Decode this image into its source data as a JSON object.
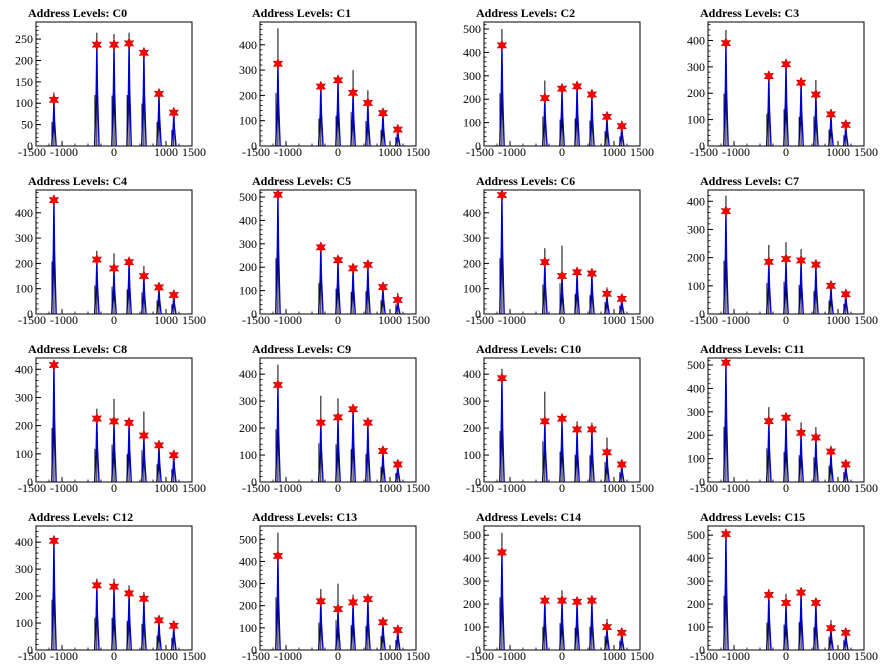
{
  "colors": {
    "histogram": "#0000cc",
    "marker": "#ff0000",
    "frame": "#000000"
  },
  "chart_data": [
    {
      "type": "bar",
      "title": "Address Levels: C0",
      "xlim": [
        -1500,
        1500
      ],
      "ylim": [
        0,
        290
      ],
      "xticks": [
        -1500,
        -1000,
        0,
        1000,
        1500
      ],
      "xtick_labels": [
        "-1500",
        "-1000",
        "0",
        "1000",
        "1500"
      ],
      "yticks": [
        0,
        50,
        100,
        150,
        200,
        250
      ],
      "peaks": [
        {
          "x": -1155,
          "y": 125,
          "marker": 108
        },
        {
          "x": -330,
          "y": 265,
          "marker": 237
        },
        {
          "x": 0,
          "y": 262,
          "marker": 237
        },
        {
          "x": 290,
          "y": 265,
          "marker": 240
        },
        {
          "x": 575,
          "y": 220,
          "marker": 218
        },
        {
          "x": 865,
          "y": 125,
          "marker": 122
        },
        {
          "x": 1150,
          "y": 83,
          "marker": 78
        }
      ]
    },
    {
      "type": "bar",
      "title": "Address Levels: C1",
      "xlim": [
        -1500,
        1500
      ],
      "ylim": [
        0,
        490
      ],
      "xticks": [
        -1500,
        -1000,
        0,
        1000,
        1500
      ],
      "xtick_labels": [
        "-1500",
        "-1000",
        "0",
        "1000",
        "1500"
      ],
      "yticks": [
        0,
        100,
        200,
        300,
        400
      ],
      "peaks": [
        {
          "x": -1155,
          "y": 465,
          "marker": 325
        },
        {
          "x": -330,
          "y": 240,
          "marker": 235
        },
        {
          "x": 0,
          "y": 265,
          "marker": 260
        },
        {
          "x": 290,
          "y": 300,
          "marker": 210
        },
        {
          "x": 575,
          "y": 220,
          "marker": 170
        },
        {
          "x": 865,
          "y": 140,
          "marker": 130
        },
        {
          "x": 1150,
          "y": 80,
          "marker": 65
        }
      ]
    },
    {
      "type": "bar",
      "title": "Address Levels: C2",
      "xlim": [
        -1500,
        1500
      ],
      "ylim": [
        0,
        530
      ],
      "xticks": [
        -1500,
        -1000,
        0,
        1000,
        1500
      ],
      "xtick_labels": [
        "-1500",
        "-1000",
        "0",
        "1000",
        "1500"
      ],
      "yticks": [
        0,
        100,
        200,
        300,
        400,
        500
      ],
      "peaks": [
        {
          "x": -1155,
          "y": 500,
          "marker": 430
        },
        {
          "x": -330,
          "y": 280,
          "marker": 205
        },
        {
          "x": 0,
          "y": 250,
          "marker": 245
        },
        {
          "x": 290,
          "y": 260,
          "marker": 255
        },
        {
          "x": 575,
          "y": 240,
          "marker": 220
        },
        {
          "x": 865,
          "y": 140,
          "marker": 125
        },
        {
          "x": 1150,
          "y": 90,
          "marker": 85
        }
      ]
    },
    {
      "type": "bar",
      "title": "Address Levels: C3",
      "xlim": [
        -1500,
        1500
      ],
      "ylim": [
        0,
        470
      ],
      "xticks": [
        -1500,
        -1000,
        0,
        1000,
        1500
      ],
      "xtick_labels": [
        "-1500",
        "-1000",
        "0",
        "1000",
        "1500"
      ],
      "yticks": [
        0,
        100,
        200,
        300,
        400
      ],
      "peaks": [
        {
          "x": -1155,
          "y": 440,
          "marker": 390
        },
        {
          "x": -330,
          "y": 270,
          "marker": 265
        },
        {
          "x": 0,
          "y": 310,
          "marker": 310
        },
        {
          "x": 290,
          "y": 245,
          "marker": 240
        },
        {
          "x": 575,
          "y": 250,
          "marker": 195
        },
        {
          "x": 865,
          "y": 140,
          "marker": 120
        },
        {
          "x": 1150,
          "y": 90,
          "marker": 80
        }
      ]
    },
    {
      "type": "bar",
      "title": "Address Levels: C4",
      "xlim": [
        -1500,
        1500
      ],
      "ylim": [
        0,
        490
      ],
      "xticks": [
        -1500,
        -1000,
        0,
        1000,
        1500
      ],
      "xtick_labels": [
        "-1500",
        "-1000",
        "0",
        "1000",
        "1500"
      ],
      "yticks": [
        0,
        100,
        200,
        300,
        400
      ],
      "peaks": [
        {
          "x": -1155,
          "y": 460,
          "marker": 450
        },
        {
          "x": -330,
          "y": 250,
          "marker": 215
        },
        {
          "x": 0,
          "y": 240,
          "marker": 180
        },
        {
          "x": 290,
          "y": 215,
          "marker": 205
        },
        {
          "x": 575,
          "y": 190,
          "marker": 150
        },
        {
          "x": 865,
          "y": 120,
          "marker": 105
        },
        {
          "x": 1150,
          "y": 85,
          "marker": 75
        }
      ]
    },
    {
      "type": "bar",
      "title": "Address Levels: C5",
      "xlim": [
        -1500,
        1500
      ],
      "ylim": [
        0,
        530
      ],
      "xticks": [
        -1500,
        -1000,
        0,
        1000,
        1500
      ],
      "xtick_labels": [
        "-1500",
        "-1000",
        "0",
        "1000",
        "1500"
      ],
      "yticks": [
        0,
        100,
        200,
        300,
        400,
        500
      ],
      "peaks": [
        {
          "x": -1155,
          "y": 530,
          "marker": 510
        },
        {
          "x": -330,
          "y": 295,
          "marker": 285
        },
        {
          "x": 0,
          "y": 240,
          "marker": 230
        },
        {
          "x": 290,
          "y": 210,
          "marker": 195
        },
        {
          "x": 575,
          "y": 215,
          "marker": 210
        },
        {
          "x": 865,
          "y": 130,
          "marker": 115
        },
        {
          "x": 1150,
          "y": 90,
          "marker": 60
        }
      ]
    },
    {
      "type": "bar",
      "title": "Address Levels: C6",
      "xlim": [
        -1500,
        1500
      ],
      "ylim": [
        0,
        490
      ],
      "xticks": [
        -1500,
        -1000,
        0,
        1000,
        1500
      ],
      "xtick_labels": [
        "-1500",
        "-1000",
        "0",
        "1000",
        "1500"
      ],
      "yticks": [
        0,
        100,
        200,
        300,
        400
      ],
      "peaks": [
        {
          "x": -1155,
          "y": 490,
          "marker": 470
        },
        {
          "x": -330,
          "y": 260,
          "marker": 205
        },
        {
          "x": 0,
          "y": 270,
          "marker": 150
        },
        {
          "x": 290,
          "y": 175,
          "marker": 165
        },
        {
          "x": 575,
          "y": 165,
          "marker": 160
        },
        {
          "x": 865,
          "y": 105,
          "marker": 80
        },
        {
          "x": 1150,
          "y": 75,
          "marker": 60
        }
      ]
    },
    {
      "type": "bar",
      "title": "Address Levels: C7",
      "xlim": [
        -1500,
        1500
      ],
      "ylim": [
        0,
        440
      ],
      "xticks": [
        -1500,
        -1000,
        0,
        1000,
        1500
      ],
      "xtick_labels": [
        "-1500",
        "-1000",
        "0",
        "1000",
        "1500"
      ],
      "yticks": [
        0,
        100,
        200,
        300,
        400
      ],
      "peaks": [
        {
          "x": -1155,
          "y": 420,
          "marker": 365
        },
        {
          "x": -330,
          "y": 245,
          "marker": 185
        },
        {
          "x": 0,
          "y": 255,
          "marker": 195
        },
        {
          "x": 290,
          "y": 230,
          "marker": 190
        },
        {
          "x": 575,
          "y": 180,
          "marker": 175
        },
        {
          "x": 865,
          "y": 105,
          "marker": 100
        },
        {
          "x": 1150,
          "y": 80,
          "marker": 70
        }
      ]
    },
    {
      "type": "bar",
      "title": "Address Levels: C8",
      "xlim": [
        -1500,
        1500
      ],
      "ylim": [
        0,
        440
      ],
      "xticks": [
        -1500,
        -1000,
        0,
        1000,
        1500
      ],
      "xtick_labels": [
        "-1500",
        "-1000",
        "0",
        "1000",
        "1500"
      ],
      "yticks": [
        0,
        100,
        200,
        300,
        400
      ],
      "peaks": [
        {
          "x": -1155,
          "y": 425,
          "marker": 415
        },
        {
          "x": -330,
          "y": 260,
          "marker": 225
        },
        {
          "x": 0,
          "y": 295,
          "marker": 215
        },
        {
          "x": 290,
          "y": 220,
          "marker": 210
        },
        {
          "x": 575,
          "y": 250,
          "marker": 165
        },
        {
          "x": 865,
          "y": 140,
          "marker": 130
        },
        {
          "x": 1150,
          "y": 100,
          "marker": 95
        }
      ]
    },
    {
      "type": "bar",
      "title": "Address Levels: C9",
      "xlim": [
        -1500,
        1500
      ],
      "ylim": [
        0,
        460
      ],
      "xticks": [
        -1500,
        -1000,
        0,
        1000,
        1500
      ],
      "xtick_labels": [
        "-1500",
        "-1000",
        "0",
        "1000",
        "1500"
      ],
      "yticks": [
        0,
        100,
        200,
        300,
        400
      ],
      "peaks": [
        {
          "x": -1155,
          "y": 435,
          "marker": 360
        },
        {
          "x": -330,
          "y": 320,
          "marker": 220
        },
        {
          "x": 0,
          "y": 310,
          "marker": 240
        },
        {
          "x": 290,
          "y": 270,
          "marker": 270
        },
        {
          "x": 575,
          "y": 230,
          "marker": 220
        },
        {
          "x": 865,
          "y": 125,
          "marker": 115
        },
        {
          "x": 1150,
          "y": 75,
          "marker": 65
        }
      ]
    },
    {
      "type": "bar",
      "title": "Address Levels: C10",
      "xlim": [
        -1500,
        1500
      ],
      "ylim": [
        0,
        460
      ],
      "xticks": [
        -1500,
        -1000,
        0,
        1000,
        1500
      ],
      "xtick_labels": [
        "-1500",
        "-1000",
        "0",
        "1000",
        "1500"
      ],
      "yticks": [
        0,
        100,
        200,
        300,
        400
      ],
      "peaks": [
        {
          "x": -1155,
          "y": 420,
          "marker": 385
        },
        {
          "x": -330,
          "y": 335,
          "marker": 225
        },
        {
          "x": 0,
          "y": 250,
          "marker": 235
        },
        {
          "x": 290,
          "y": 225,
          "marker": 195
        },
        {
          "x": 575,
          "y": 220,
          "marker": 195
        },
        {
          "x": 865,
          "y": 165,
          "marker": 110
        },
        {
          "x": 1150,
          "y": 80,
          "marker": 65
        }
      ]
    },
    {
      "type": "bar",
      "title": "Address Levels: C11",
      "xlim": [
        -1500,
        1500
      ],
      "ylim": [
        0,
        530
      ],
      "xticks": [
        -1500,
        -1000,
        0,
        1000,
        1500
      ],
      "xtick_labels": [
        "-1500",
        "-1000",
        "0",
        "1000",
        "1500"
      ],
      "yticks": [
        0,
        100,
        200,
        300,
        400,
        500
      ],
      "peaks": [
        {
          "x": -1155,
          "y": 525,
          "marker": 510
        },
        {
          "x": -330,
          "y": 320,
          "marker": 260
        },
        {
          "x": 0,
          "y": 285,
          "marker": 275
        },
        {
          "x": 290,
          "y": 255,
          "marker": 210
        },
        {
          "x": 575,
          "y": 235,
          "marker": 190
        },
        {
          "x": 865,
          "y": 155,
          "marker": 130
        },
        {
          "x": 1150,
          "y": 95,
          "marker": 75
        }
      ]
    },
    {
      "type": "bar",
      "title": "Address Levels: C12",
      "xlim": [
        -1500,
        1500
      ],
      "ylim": [
        0,
        460
      ],
      "xticks": [
        -1500,
        -1000,
        0,
        1000,
        1500
      ],
      "xtick_labels": [
        "-1500",
        "-1000",
        "0",
        "1000",
        "1500"
      ],
      "yticks": [
        0,
        100,
        200,
        300,
        400
      ],
      "peaks": [
        {
          "x": -1155,
          "y": 415,
          "marker": 405
        },
        {
          "x": -330,
          "y": 265,
          "marker": 240
        },
        {
          "x": 0,
          "y": 265,
          "marker": 235
        },
        {
          "x": 290,
          "y": 240,
          "marker": 210
        },
        {
          "x": 575,
          "y": 215,
          "marker": 190
        },
        {
          "x": 865,
          "y": 120,
          "marker": 110
        },
        {
          "x": 1150,
          "y": 100,
          "marker": 90
        }
      ]
    },
    {
      "type": "bar",
      "title": "Address Levels: C13",
      "xlim": [
        -1500,
        1500
      ],
      "ylim": [
        0,
        560
      ],
      "xticks": [
        -1500,
        -1000,
        0,
        1000,
        1500
      ],
      "xtick_labels": [
        "-1500",
        "-1000",
        "0",
        "1000",
        "1500"
      ],
      "yticks": [
        0,
        100,
        200,
        300,
        400,
        500
      ],
      "peaks": [
        {
          "x": -1155,
          "y": 530,
          "marker": 425
        },
        {
          "x": -330,
          "y": 275,
          "marker": 220
        },
        {
          "x": 0,
          "y": 300,
          "marker": 185
        },
        {
          "x": 290,
          "y": 250,
          "marker": 215
        },
        {
          "x": 575,
          "y": 240,
          "marker": 230
        },
        {
          "x": 865,
          "y": 140,
          "marker": 125
        },
        {
          "x": 1150,
          "y": 100,
          "marker": 90
        }
      ]
    },
    {
      "type": "bar",
      "title": "Address Levels: C14",
      "xlim": [
        -1500,
        1500
      ],
      "ylim": [
        0,
        540
      ],
      "xticks": [
        -1500,
        -1000,
        0,
        1000,
        1500
      ],
      "xtick_labels": [
        "-1500",
        "-1000",
        "0",
        "1000",
        "1500"
      ],
      "yticks": [
        0,
        100,
        200,
        300,
        400,
        500
      ],
      "peaks": [
        {
          "x": -1155,
          "y": 510,
          "marker": 425
        },
        {
          "x": -330,
          "y": 225,
          "marker": 215
        },
        {
          "x": 0,
          "y": 260,
          "marker": 215
        },
        {
          "x": 290,
          "y": 215,
          "marker": 210
        },
        {
          "x": 575,
          "y": 225,
          "marker": 215
        },
        {
          "x": 865,
          "y": 135,
          "marker": 100
        },
        {
          "x": 1150,
          "y": 90,
          "marker": 75
        }
      ]
    },
    {
      "type": "bar",
      "title": "Address Levels: C15",
      "xlim": [
        -1500,
        1500
      ],
      "ylim": [
        0,
        540
      ],
      "xticks": [
        -1500,
        -1000,
        0,
        1000,
        1500
      ],
      "xtick_labels": [
        "-1500",
        "-1000",
        "0",
        "1000",
        "1500"
      ],
      "yticks": [
        0,
        100,
        200,
        300,
        400,
        500
      ],
      "peaks": [
        {
          "x": -1155,
          "y": 525,
          "marker": 505
        },
        {
          "x": -330,
          "y": 265,
          "marker": 240
        },
        {
          "x": 0,
          "y": 245,
          "marker": 205
        },
        {
          "x": 290,
          "y": 270,
          "marker": 250
        },
        {
          "x": 575,
          "y": 220,
          "marker": 205
        },
        {
          "x": 865,
          "y": 130,
          "marker": 95
        },
        {
          "x": 1150,
          "y": 95,
          "marker": 75
        }
      ]
    }
  ]
}
